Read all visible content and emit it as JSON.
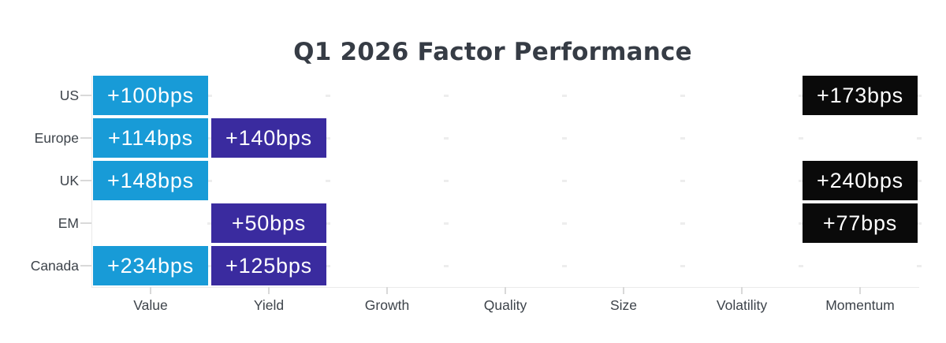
{
  "page": {
    "background": "#ffffff"
  },
  "chart_data": {
    "type": "heatmap",
    "title": "Q1 2026 Factor Performance",
    "rows": [
      "US",
      "Europe",
      "UK",
      "EM",
      "Canada"
    ],
    "columns": [
      "Value",
      "Yield",
      "Growth",
      "Quality",
      "Size",
      "Volatility",
      "Momentum"
    ],
    "unit": "bps",
    "cells": [
      {
        "row": "US",
        "col": "Value",
        "value": 100,
        "label": "+100bps",
        "color_key": "cyan"
      },
      {
        "row": "US",
        "col": "Momentum",
        "value": 173,
        "label": "+173bps",
        "color_key": "black"
      },
      {
        "row": "Europe",
        "col": "Value",
        "value": 114,
        "label": "+114bps",
        "color_key": "cyan"
      },
      {
        "row": "Europe",
        "col": "Yield",
        "value": 140,
        "label": "+140bps",
        "color_key": "indigo"
      },
      {
        "row": "UK",
        "col": "Value",
        "value": 148,
        "label": "+148bps",
        "color_key": "cyan"
      },
      {
        "row": "UK",
        "col": "Momentum",
        "value": 240,
        "label": "+240bps",
        "color_key": "black"
      },
      {
        "row": "EM",
        "col": "Yield",
        "value": 50,
        "label": "+50bps",
        "color_key": "indigo"
      },
      {
        "row": "EM",
        "col": "Momentum",
        "value": 77,
        "label": "+77bps",
        "color_key": "black"
      },
      {
        "row": "Canada",
        "col": "Value",
        "value": 234,
        "label": "+234bps",
        "color_key": "cyan"
      },
      {
        "row": "Canada",
        "col": "Yield",
        "value": 125,
        "label": "+125bps",
        "color_key": "indigo"
      }
    ],
    "colors": {
      "cyan": "#189bd7",
      "indigo": "#3a2b9f",
      "black": "#0a0a0a"
    },
    "axis_color": "#eaeaea",
    "label_color": "#3d434a",
    "title_color": "#363c45",
    "legend": "none",
    "grid": "faint dashes at column boundaries"
  }
}
